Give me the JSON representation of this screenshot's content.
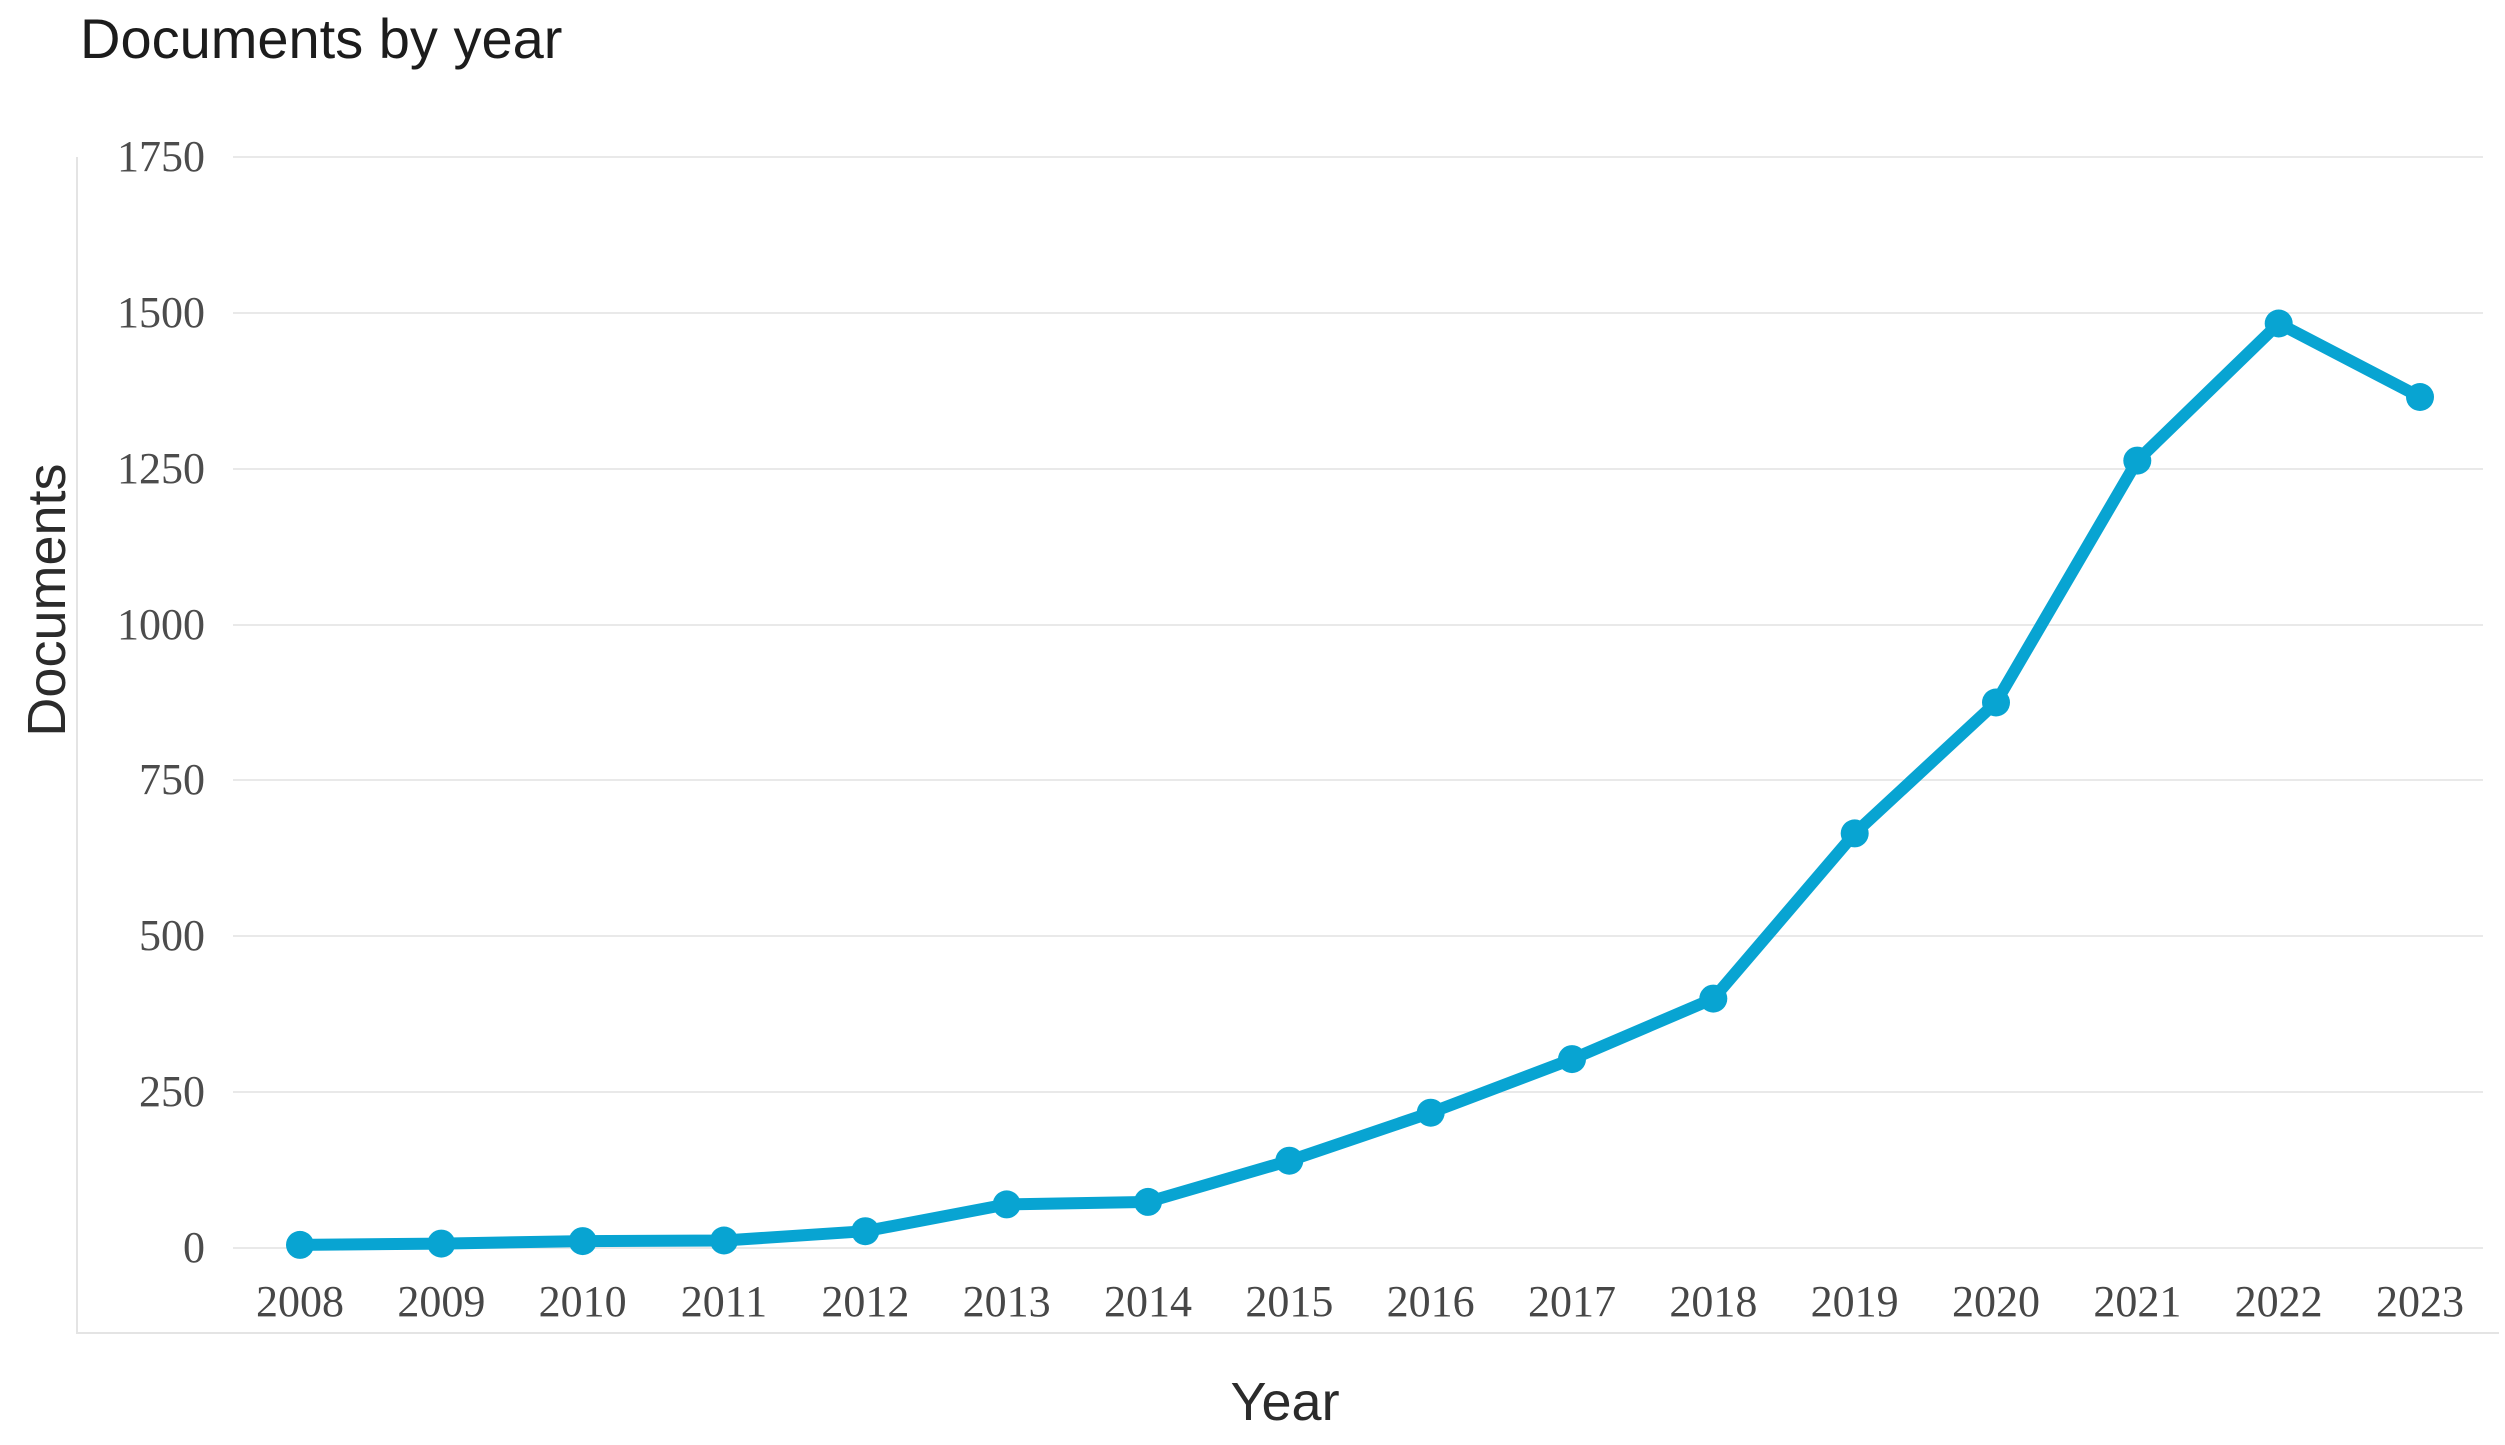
{
  "chart_data": {
    "type": "line",
    "title": "Documents by year",
    "xlabel": "Year",
    "ylabel": "Documents",
    "categories": [
      "2008",
      "2009",
      "2010",
      "2011",
      "2012",
      "2013",
      "2014",
      "2015",
      "2016",
      "2017",
      "2018",
      "2019",
      "2020",
      "2021",
      "2022",
      "2023"
    ],
    "values": [
      5,
      7,
      11,
      12,
      27,
      70,
      74,
      140,
      217,
      303,
      400,
      665,
      875,
      1263,
      1483,
      1365
    ],
    "series_name": "Documents",
    "ylim": [
      0,
      1750
    ],
    "yticks": [
      0,
      250,
      500,
      750,
      1000,
      1250,
      1500,
      1750
    ],
    "grid": true,
    "legend": "none",
    "colors": {
      "line": "#08a4d2",
      "marker": "#08a4d2",
      "gridline": "#e9e9e9",
      "axis_line": "#e4e4e4",
      "tick_text": "#4c4c4c",
      "title_text": "#1c1c1c"
    }
  }
}
